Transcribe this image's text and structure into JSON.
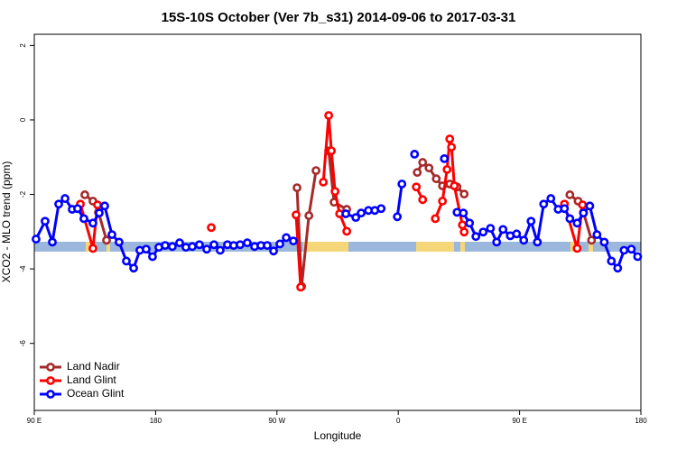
{
  "chart_data": {
    "type": "line",
    "title": "15S-10S October (Ver 7b_s31)   2014-09-06 to 2017-03-31",
    "xlabel": "Longitude",
    "ylabel": "XCO2 - MLO trend (ppm)",
    "xlim": [
      90,
      540
    ],
    "ylim": [
      -7.8,
      2.3
    ],
    "xticks": [
      {
        "value": 90,
        "label": "90 E"
      },
      180,
      {
        "value": 270,
        "label": "90 W"
      },
      {
        "value": 360,
        "label": "0"
      },
      {
        "value": 450,
        "label": "90 E"
      },
      {
        "value": 540,
        "label": "180"
      }
    ],
    "yticks": [
      2,
      0,
      -2,
      -4,
      -6
    ],
    "legend": "bottom left",
    "series": [
      {
        "name": "Land Nadir",
        "color": "#a52a2a",
        "x": [
          127.5,
          133.5,
          137.6,
          143.6,
          null,
          284.9,
          288.3,
          293.7,
          299.0,
          null,
          308.4,
          312.4,
          321.8,
          null,
          374.1,
          378.1,
          382.8,
          388.2,
          392.8,
          398.2,
          403.6,
          408.9,
          null,
          487.3,
          493.4,
          497.4,
          503.4
        ],
        "values": [
          -2.01,
          -2.18,
          -2.48,
          -3.23,
          null,
          -1.82,
          -4.47,
          -2.57,
          -1.36,
          null,
          -0.83,
          -2.21,
          -2.4,
          null,
          -1.41,
          -1.14,
          -1.29,
          -1.58,
          -1.77,
          -1.72,
          -1.8,
          -1.99,
          null,
          -2.01,
          -2.18,
          -2.48,
          -3.23
        ]
      },
      {
        "name": "Land Glint",
        "color": "#ff0000",
        "x": [
          124.2,
          133.5,
          136.9,
          null,
          221.3,
          null,
          284.2,
          287.6,
          null,
          304.4,
          308.4,
          310.4,
          313.1,
          316.5,
          321.8,
          null,
          373.4,
          378.1,
          null,
          387.5,
          392.8,
          396.2,
          398.2,
          399.5,
          401.6,
          407.6,
          408.9,
          null,
          483.3,
          492.7,
          496.7
        ],
        "values": [
          -2.26,
          -3.45,
          -2.28,
          null,
          -2.89,
          null,
          -2.55,
          -4.49,
          null,
          -1.67,
          0.12,
          -0.83,
          -1.92,
          -2.52,
          -2.99,
          null,
          -1.8,
          -2.14,
          null,
          -2.65,
          -2.18,
          -1.33,
          -0.51,
          -0.73,
          -1.77,
          -2.82,
          -3.01,
          null,
          -2.26,
          -3.45,
          -2.28
        ]
      },
      {
        "name": "Ocean Glint",
        "color": "#0000ff",
        "x": [
          91.3,
          98.0,
          103.4,
          108.1,
          112.8,
          118.1,
          122.1,
          126.8,
          133.5,
          138.2,
          142.2,
          147.6,
          152.9,
          158.3,
          163.7,
          168.3,
          173.0,
          177.7,
          182.4,
          187.1,
          192.4,
          197.8,
          202.5,
          207.2,
          212.5,
          217.9,
          223.3,
          227.9,
          233.3,
          237.9,
          242.7,
          248.0,
          253.4,
          258.1,
          262.8,
          267.5,
          272.2,
          276.9,
          282.2,
          null,
          321.1,
          328.5,
          332.5,
          337.9,
          342.6,
          347.3,
          null,
          359.3,
          362.7,
          null,
          372.1,
          null,
          394.2,
          null,
          403.6,
          408.3,
          412.9,
          417.6,
          423.0,
          428.4,
          433.0,
          437.7,
          443.1,
          447.8,
          453.1,
          458.5,
          463.2,
          467.9,
          473.2,
          478.6,
          483.3,
          487.3,
          492.7,
          497.4,
          502.1,
          507.4,
          512.8,
          518.1,
          522.8,
          527.5,
          532.9,
          537.6
        ],
        "values": [
          -3.2,
          -2.72,
          -3.28,
          -2.26,
          -2.11,
          -2.4,
          -2.38,
          -2.65,
          -2.77,
          -2.5,
          -2.31,
          -3.08,
          -3.28,
          -3.79,
          -3.98,
          -3.5,
          -3.47,
          -3.67,
          -3.42,
          -3.37,
          -3.4,
          -3.3,
          -3.42,
          -3.4,
          -3.35,
          -3.47,
          -3.35,
          -3.5,
          -3.35,
          -3.37,
          -3.35,
          -3.3,
          -3.4,
          -3.37,
          -3.37,
          -3.52,
          -3.33,
          -3.16,
          -3.25,
          null,
          -2.52,
          -2.62,
          -2.5,
          -2.43,
          -2.43,
          -2.38,
          null,
          -2.6,
          -1.72,
          null,
          -0.92,
          null,
          -1.04,
          null,
          -2.48,
          -2.5,
          -2.77,
          -3.13,
          -3.01,
          -2.91,
          -3.28,
          -2.94,
          -3.11,
          -3.06,
          -3.23,
          -2.72,
          -3.28,
          -2.26,
          -2.11,
          -2.4,
          -2.38,
          -2.65,
          -2.77,
          -2.5,
          -2.31,
          -3.08,
          -3.28,
          -3.79,
          -3.98,
          -3.5,
          -3.47,
          -3.67
        ]
      }
    ]
  }
}
